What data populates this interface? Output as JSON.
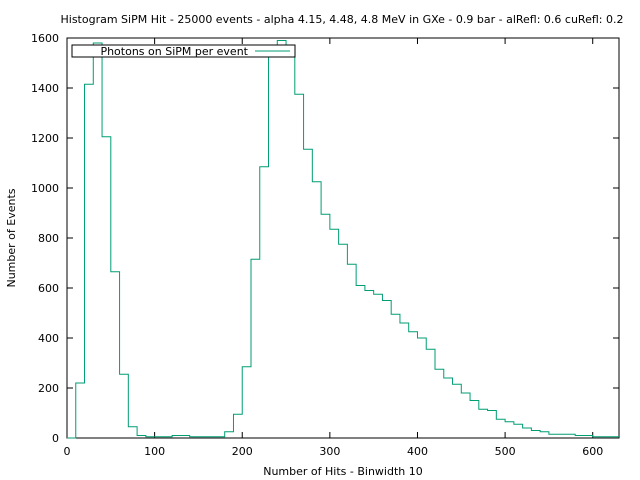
{
  "chart_data": {
    "type": "histogram",
    "title": "Histogram SiPM Hit - 25000 events - alpha 4.15, 4.48, 4.8 MeV  in GXe - 0.9 bar - alRefl: 0.6 cuRefl: 0.2",
    "xlabel": "Number of Hits - Binwidth 10",
    "ylabel": "Number of Events",
    "xlim": [
      0,
      630
    ],
    "ylim": [
      0,
      1600
    ],
    "xticks": [
      0,
      100,
      200,
      300,
      400,
      500,
      600
    ],
    "yticks": [
      0,
      200,
      400,
      600,
      800,
      1000,
      1200,
      1400,
      1600
    ],
    "grid": false,
    "legend_position": "top-left",
    "series": [
      {
        "name": "Photons on SiPM per event",
        "color": "#009e73",
        "binwidth": 10,
        "bin_edges_start": 0,
        "counts": [
          0,
          220,
          1415,
          1580,
          1205,
          665,
          255,
          45,
          10,
          5,
          5,
          5,
          10,
          10,
          5,
          5,
          5,
          5,
          25,
          95,
          285,
          715,
          1085,
          1525,
          1590,
          1525,
          1375,
          1155,
          1025,
          895,
          835,
          775,
          695,
          610,
          590,
          575,
          550,
          495,
          460,
          425,
          400,
          355,
          275,
          240,
          215,
          180,
          150,
          115,
          110,
          75,
          65,
          55,
          40,
          30,
          25,
          15,
          15,
          15,
          10,
          10,
          5,
          5,
          5
        ]
      }
    ]
  }
}
